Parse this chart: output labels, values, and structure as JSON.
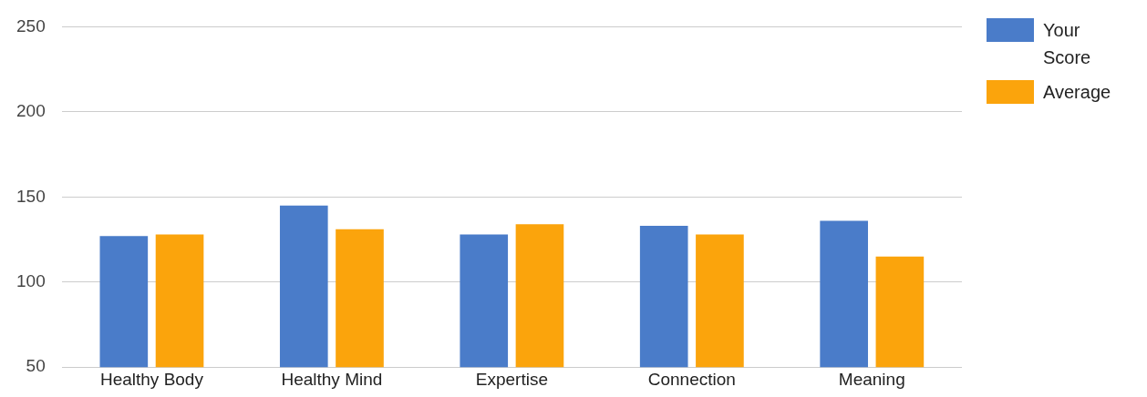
{
  "chart_data": {
    "type": "bar",
    "categories": [
      "Healthy Body",
      "Healthy Mind",
      "Expertise",
      "Connection",
      "Meaning"
    ],
    "series": [
      {
        "name": "Your Score",
        "color": "#4a7cc9",
        "values": [
          127,
          145,
          128,
          133,
          136
        ]
      },
      {
        "name": "Average",
        "color": "#fba40c",
        "values": [
          128,
          131,
          134,
          128,
          115
        ]
      }
    ],
    "ylim": [
      50,
      250
    ],
    "yticks": [
      50,
      100,
      150,
      200,
      250
    ],
    "grid": "y",
    "legend": "top right"
  }
}
